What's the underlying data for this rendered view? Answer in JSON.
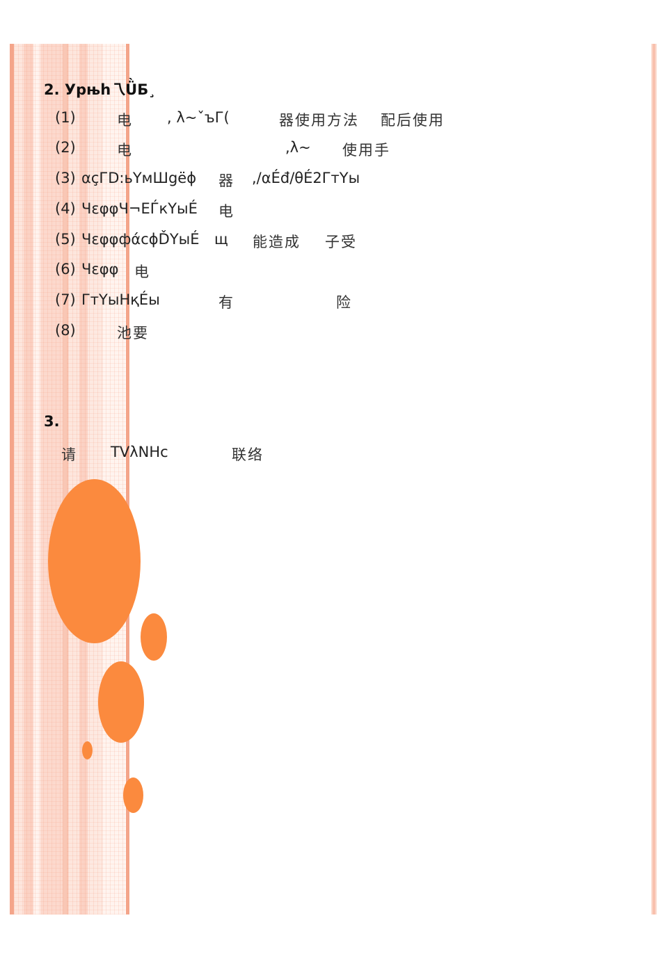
{
  "section2": {
    "heading": "2. Урњh乁ǛƂ¸",
    "items": [
      {
        "num": "(1)",
        "segments": [
          "电",
          ", λ~ˇъГ(",
          "器使用方法",
          "配后使用"
        ]
      },
      {
        "num": "(2)",
        "segments": [
          "电",
          ",λ~",
          "使用手"
        ]
      },
      {
        "num": "(3)",
        "segments": [
          "αçГD:ьҮмШgёɸ",
          "器",
          ",/αÉđ/θÉ2ГтҮы"
        ]
      },
      {
        "num": "(4)",
        "segments": [
          "ЧεφφЧ¬ЕЃкҮыÉ",
          "电"
        ]
      },
      {
        "num": "(5)",
        "segments": [
          "ЧεφφфάсɸĎҮыÉ",
          "щ",
          "能造成",
          "子受"
        ]
      },
      {
        "num": "(6)",
        "segments": [
          "Чεφφ",
          "电"
        ]
      },
      {
        "num": "(7)",
        "segments": [
          "ГтҮыНқÉы",
          "有",
          "险"
        ]
      },
      {
        "num": "(8)",
        "segments": [
          "池要"
        ]
      }
    ]
  },
  "section3": {
    "heading": "3.",
    "segments": [
      "请",
      "TVλNНс",
      "联络"
    ]
  },
  "colors": {
    "accent": "#fb8a3e",
    "stripe": "#f4a58a"
  }
}
